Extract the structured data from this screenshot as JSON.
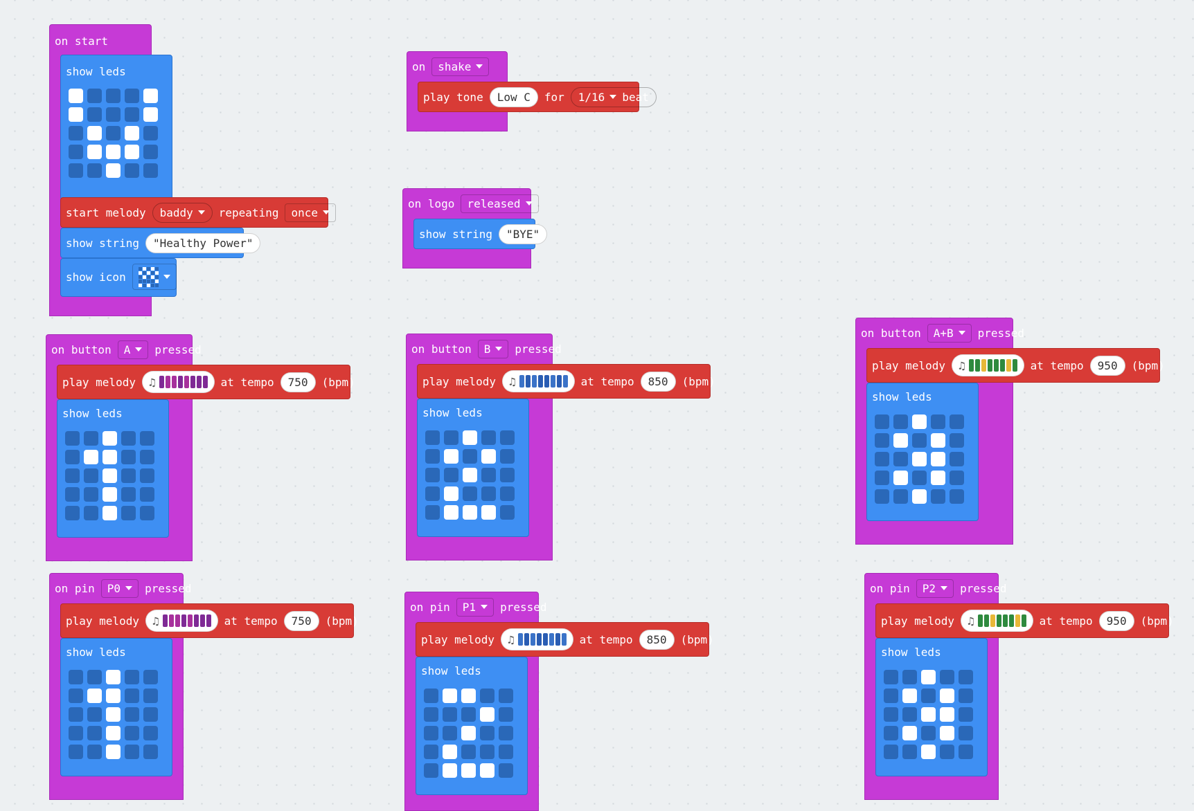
{
  "colors": {
    "events": "#c63ad6",
    "basic": "#3e8ff3",
    "music": "#d83b36",
    "led_off": "#2a68b8",
    "led_on": "#ffffff"
  },
  "on_start": {
    "hat": "on start",
    "show_leds": "show leds",
    "leds": [
      [
        1,
        0,
        0,
        0,
        1
      ],
      [
        1,
        0,
        0,
        0,
        1
      ],
      [
        0,
        1,
        0,
        1,
        0
      ],
      [
        0,
        1,
        1,
        1,
        0
      ],
      [
        0,
        0,
        1,
        0,
        0
      ]
    ],
    "start_melody": "start melody",
    "melody": "baddy",
    "repeating": "repeating",
    "once": "once",
    "show_string": "show string",
    "string_value": "\"Healthy Power\"",
    "show_icon": "show icon",
    "icon_name": "icon-select-icon",
    "icon_preview": [
      [
        0,
        1,
        0,
        1,
        0
      ],
      [
        1,
        0,
        1,
        0,
        1
      ],
      [
        0,
        1,
        0,
        1,
        0
      ],
      [
        0,
        0,
        0,
        0,
        1
      ],
      [
        1,
        0,
        1,
        0,
        0
      ]
    ]
  },
  "on_shake": {
    "on": "on",
    "gesture": "shake",
    "play_tone": "play tone",
    "note": "Low C",
    "for": "for",
    "duration": "1/16",
    "beat": "beat"
  },
  "on_logo": {
    "on": "on logo",
    "action": "released",
    "show_string": "show string",
    "value": "\"BYE\""
  },
  "button_a": {
    "on": "on button",
    "button": "A",
    "pressed": "pressed",
    "play_melody": "play melody",
    "at_tempo": "at tempo",
    "tempo": "750",
    "bpm": "(bpm)",
    "show_leds": "show leds",
    "melody_colors": [
      "#7f2a95",
      "#a7309c",
      "#a7309c",
      "#7f2a95",
      "#a7309c",
      "#7f2a95",
      "#7f2a95",
      "#7f2a95"
    ],
    "leds": [
      [
        0,
        0,
        1,
        0,
        0
      ],
      [
        0,
        1,
        1,
        0,
        0
      ],
      [
        0,
        0,
        1,
        0,
        0
      ],
      [
        0,
        0,
        1,
        0,
        0
      ],
      [
        0,
        0,
        1,
        0,
        0
      ]
    ]
  },
  "button_b": {
    "on": "on button",
    "button": "B",
    "pressed": "pressed",
    "play_melody": "play melody",
    "at_tempo": "at tempo",
    "tempo": "850",
    "bpm": "(bpm)",
    "show_leds": "show leds",
    "melody_colors": [
      "#3b73c8",
      "#2a5db3",
      "#3b73c8",
      "#2a5db3",
      "#2a5db3",
      "#3b73c8",
      "#2a5db3",
      "#3b73c8"
    ],
    "leds": [
      [
        0,
        0,
        1,
        0,
        0
      ],
      [
        0,
        1,
        0,
        1,
        0
      ],
      [
        0,
        0,
        1,
        0,
        0
      ],
      [
        0,
        1,
        0,
        0,
        0
      ],
      [
        0,
        1,
        1,
        1,
        0
      ]
    ]
  },
  "button_ab": {
    "on": "on button",
    "button": "A+B",
    "pressed": "pressed",
    "play_melody": "play melody",
    "at_tempo": "at tempo",
    "tempo": "950",
    "bpm": "(bpm)",
    "show_leds": "show leds",
    "melody_colors": [
      "#2e8a3e",
      "#2e8a3e",
      "#e8b838",
      "#2e8a3e",
      "#2e8a3e",
      "#2e8a3e",
      "#e8b838",
      "#2e8a3e"
    ],
    "leds": [
      [
        0,
        0,
        1,
        0,
        0
      ],
      [
        0,
        1,
        0,
        1,
        0
      ],
      [
        0,
        0,
        1,
        1,
        0
      ],
      [
        0,
        1,
        0,
        1,
        0
      ],
      [
        0,
        0,
        1,
        0,
        0
      ]
    ]
  },
  "pin_p0": {
    "on": "on pin",
    "pin": "P0",
    "pressed": "pressed",
    "play_melody": "play melody",
    "at_tempo": "at tempo",
    "tempo": "750",
    "bpm": "(bpm)",
    "show_leds": "show leds",
    "melody_colors": [
      "#7f2a95",
      "#a7309c",
      "#a7309c",
      "#7f2a95",
      "#a7309c",
      "#7f2a95",
      "#7f2a95",
      "#7f2a95"
    ],
    "leds": [
      [
        0,
        0,
        1,
        0,
        0
      ],
      [
        0,
        1,
        1,
        0,
        0
      ],
      [
        0,
        0,
        1,
        0,
        0
      ],
      [
        0,
        0,
        1,
        0,
        0
      ],
      [
        0,
        0,
        1,
        0,
        0
      ]
    ]
  },
  "pin_p1": {
    "on": "on pin",
    "pin": "P1",
    "pressed": "pressed",
    "play_melody": "play melody",
    "at_tempo": "at tempo",
    "tempo": "850",
    "bpm": "(bpm)",
    "show_leds": "show leds",
    "melody_colors": [
      "#3b73c8",
      "#2a5db3",
      "#3b73c8",
      "#2a5db3",
      "#2a5db3",
      "#3b73c8",
      "#2a5db3",
      "#3b73c8"
    ],
    "leds": [
      [
        0,
        1,
        1,
        0,
        0
      ],
      [
        0,
        0,
        0,
        1,
        0
      ],
      [
        0,
        0,
        1,
        0,
        0
      ],
      [
        0,
        1,
        0,
        0,
        0
      ],
      [
        0,
        1,
        1,
        1,
        0
      ]
    ]
  },
  "pin_p2": {
    "on": "on pin",
    "pin": "P2",
    "pressed": "pressed",
    "play_melody": "play melody",
    "at_tempo": "at tempo",
    "tempo": "950",
    "bpm": "(bpm)",
    "show_leds": "show leds",
    "melody_colors": [
      "#2e8a3e",
      "#2e8a3e",
      "#e8b838",
      "#2e8a3e",
      "#2e8a3e",
      "#2e8a3e",
      "#e8b838",
      "#2e8a3e"
    ],
    "leds": [
      [
        0,
        0,
        1,
        0,
        0
      ],
      [
        0,
        1,
        0,
        1,
        0
      ],
      [
        0,
        0,
        1,
        1,
        0
      ],
      [
        0,
        1,
        0,
        1,
        0
      ],
      [
        0,
        0,
        1,
        0,
        0
      ]
    ]
  }
}
